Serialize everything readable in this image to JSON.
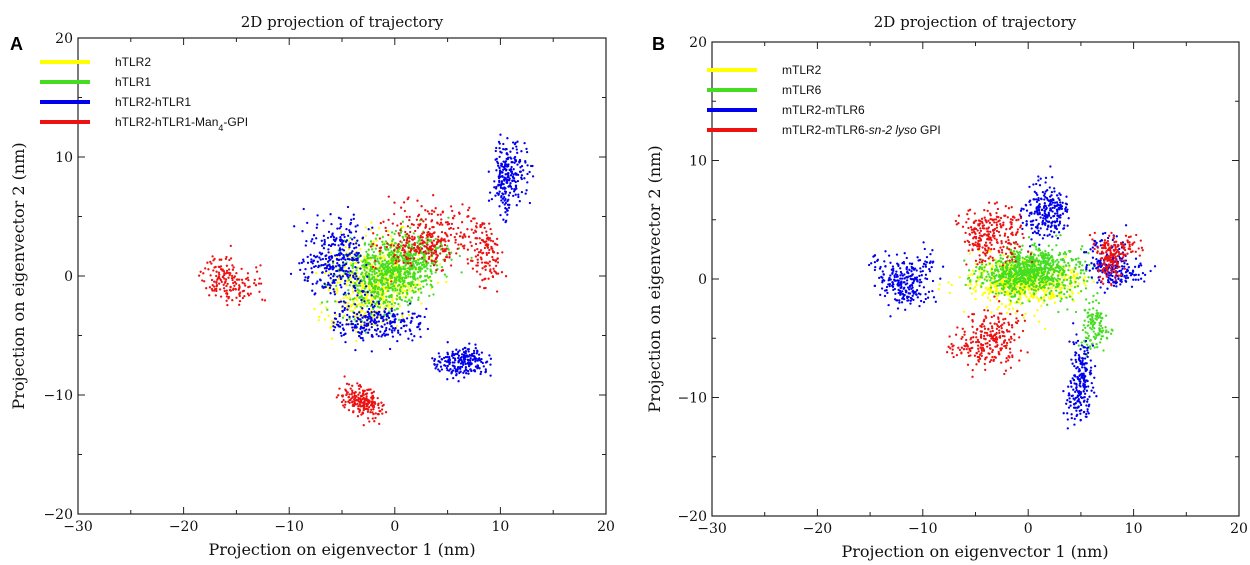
{
  "chart_data": [
    {
      "type": "scatter",
      "panel": "A",
      "title": "2D projection of trajectory",
      "xlabel": "Projection on eigenvector 1 (nm)",
      "ylabel": "Projection on eigenvector 2 (nm)",
      "xlim": [
        -30,
        20
      ],
      "ylim": [
        -20,
        20
      ],
      "xticks": [
        "−30",
        "−20",
        "−10",
        "0",
        "10",
        "20"
      ],
      "yticks": [
        "−20",
        "−10",
        "0",
        "10",
        "20"
      ],
      "legend_position": "top-left",
      "series": [
        {
          "name": "hTLR2",
          "color": "#ffff00",
          "clusters": [
            {
              "cx": -1,
              "cy": 0,
              "sx": 4.5,
              "sy": 3.2,
              "n": 650
            }
          ]
        },
        {
          "name": "hTLR1",
          "color": "#44dd22",
          "clusters": [
            {
              "cx": 0,
              "cy": 0.5,
              "sx": 4.8,
              "sy": 3.0,
              "n": 850
            }
          ]
        },
        {
          "name": "hTLR2-hTLR1",
          "color": "#0000ee",
          "clusters": [
            {
              "cx": -5,
              "cy": 2,
              "sx": 3.0,
              "sy": 3.0,
              "n": 320
            },
            {
              "cx": 11,
              "cy": 8,
              "sx": 1.5,
              "sy": 3.0,
              "n": 240
            },
            {
              "cx": 6,
              "cy": -7,
              "sx": 2.5,
              "sy": 1.2,
              "n": 220
            },
            {
              "cx": -1,
              "cy": -4,
              "sx": 3.5,
              "sy": 2.0,
              "n": 260
            }
          ]
        },
        {
          "name": "hTLR2-hTLR1-Man4-GPI",
          "color": "#ee1111",
          "label_parts": [
            "hTLR2-hTLR1-Man",
            "4",
            "-GPI"
          ],
          "clusters": [
            {
              "cx": -16,
              "cy": 0,
              "sx": 2.0,
              "sy": 1.8,
              "n": 160
            },
            {
              "cx": -3,
              "cy": -10.5,
              "sx": 2.0,
              "sy": 1.5,
              "n": 200
            },
            {
              "cx": 3,
              "cy": 3,
              "sx": 4.0,
              "sy": 2.5,
              "n": 320
            },
            {
              "cx": 9,
              "cy": 1,
              "sx": 1.5,
              "sy": 1.8,
              "n": 120
            }
          ]
        }
      ]
    },
    {
      "type": "scatter",
      "panel": "B",
      "title": "2D projection of trajectory",
      "xlabel": "Projection on eigenvector 1 (nm)",
      "ylabel": "Projection on eigenvector 2 (nm)",
      "xlim": [
        -30,
        20
      ],
      "ylim": [
        -20,
        20
      ],
      "xticks": [
        "−30",
        "−20",
        "−10",
        "0",
        "10",
        "20"
      ],
      "yticks": [
        "−20",
        "−10",
        "0",
        "10",
        "20"
      ],
      "legend_position": "top-left",
      "series": [
        {
          "name": "mTLR2",
          "color": "#ffff00",
          "clusters": [
            {
              "cx": 0,
              "cy": 0,
              "sx": 4.0,
              "sy": 2.0,
              "n": 650
            }
          ]
        },
        {
          "name": "mTLR6",
          "color": "#44dd22",
          "clusters": [
            {
              "cx": 0,
              "cy": 0.5,
              "sx": 4.0,
              "sy": 1.8,
              "n": 850
            },
            {
              "cx": 6,
              "cy": -5,
              "sx": 1.2,
              "sy": 2.0,
              "n": 120
            }
          ]
        },
        {
          "name": "mTLR2-mTLR6",
          "color": "#0000ee",
          "clusters": [
            {
              "cx": -12,
              "cy": 0,
              "sx": 2.5,
              "sy": 2.0,
              "n": 260
            },
            {
              "cx": 2,
              "cy": 6,
              "sx": 2.5,
              "sy": 2.5,
              "n": 240
            },
            {
              "cx": 5,
              "cy": -8,
              "sx": 1.5,
              "sy": 3.0,
              "n": 220
            },
            {
              "cx": 8,
              "cy": 1,
              "sx": 2.0,
              "sy": 2.0,
              "n": 220
            }
          ]
        },
        {
          "name": "mTLR2-mTLR6-sn-2 lyso GPI",
          "color": "#ee1111",
          "label_parts": [
            "mTLR2-mTLR6-",
            "sn-2 lyso",
            " GPI"
          ],
          "clusters": [
            {
              "cx": -4,
              "cy": 4,
              "sx": 2.5,
              "sy": 2.5,
              "n": 260
            },
            {
              "cx": -3,
              "cy": -5,
              "sx": 3.0,
              "sy": 2.5,
              "n": 260
            },
            {
              "cx": 8,
              "cy": 2,
              "sx": 2.0,
              "sy": 2.0,
              "n": 200
            }
          ]
        }
      ]
    }
  ]
}
